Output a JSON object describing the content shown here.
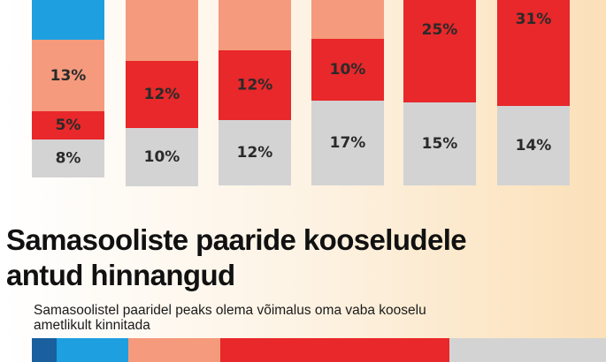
{
  "chart_data": [
    {
      "type": "bar",
      "stacked": true,
      "note": "top of each column is cropped by the image edge",
      "colors": {
        "gray": "#d3d3d3",
        "red": "#e8282a",
        "salmon": "#f59a7c",
        "blue": "#1ea0e0"
      },
      "columns": [
        {
          "segments": [
            {
              "color": "gray",
              "label": "8%"
            },
            {
              "color": "red",
              "label": "5%"
            },
            {
              "color": "salmon",
              "label": "13%"
            },
            {
              "color": "blue",
              "label": ""
            }
          ]
        },
        {
          "segments": [
            {
              "color": "gray",
              "label": "10%"
            },
            {
              "color": "red",
              "label": "12%"
            },
            {
              "color": "salmon",
              "label": ""
            }
          ]
        },
        {
          "segments": [
            {
              "color": "gray",
              "label": "12%"
            },
            {
              "color": "red",
              "label": "12%"
            },
            {
              "color": "salmon",
              "label": ""
            }
          ]
        },
        {
          "segments": [
            {
              "color": "gray",
              "label": "17%"
            },
            {
              "color": "red",
              "label": "10%"
            },
            {
              "color": "salmon",
              "label": ""
            }
          ]
        },
        {
          "segments": [
            {
              "color": "gray",
              "label": "15%"
            },
            {
              "color": "red",
              "label": "25%"
            }
          ]
        },
        {
          "segments": [
            {
              "color": "gray",
              "label": "14%"
            },
            {
              "color": "red",
              "label": "31%"
            }
          ]
        }
      ]
    },
    {
      "type": "bar",
      "stacked": true,
      "orientation": "horizontal",
      "note": "bottom bar cropped by the image edge",
      "segments": [
        {
          "color": "#1a5f9e"
        },
        {
          "color": "#1ea0e0"
        },
        {
          "color": "#f59a7c"
        },
        {
          "color": "#e8282a"
        },
        {
          "color": "#d3d3d3"
        }
      ]
    }
  ],
  "headline": {
    "line1": "Samasooliste paaride kooseludele",
    "line2": "antud hinnangud"
  },
  "subtitle": {
    "line1": "Samasoolistel paaridel peaks olema võimalus oma vaba kooselu",
    "line2": "ametlikult kinnitada"
  }
}
